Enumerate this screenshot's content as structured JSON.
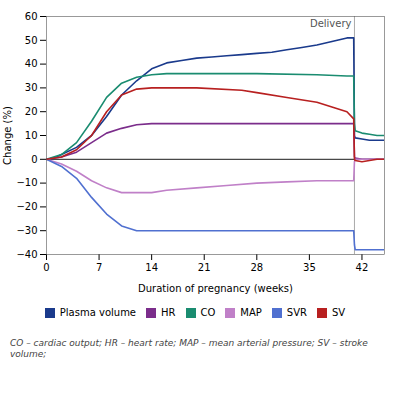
{
  "chart_data": {
    "type": "line",
    "xlabel": "Duration of pregnancy (weeks)",
    "ylabel": "Change (%)",
    "xlim": [
      0,
      45
    ],
    "ylim": [
      -40,
      60
    ],
    "xticks": [
      0,
      7,
      14,
      21,
      28,
      35,
      42
    ],
    "yticks": [
      -40,
      -30,
      -20,
      -10,
      0,
      10,
      20,
      30,
      40,
      50,
      60
    ],
    "grid": false,
    "legend": "bottom",
    "annotations": [
      {
        "text": "Delivery",
        "x": 41.0
      }
    ],
    "caption": "CO – cardiac output; HR – heart rate; MAP – mean arterial pressure; SV – stroke volume;",
    "series": [
      {
        "name": "Plasma volume",
        "color": "#1a3a8c",
        "x": [
          0,
          1,
          2,
          4,
          6,
          8,
          10,
          12,
          14,
          16,
          18,
          20,
          22,
          24,
          26,
          28,
          30,
          32,
          34,
          36,
          38,
          40,
          40.9,
          41.0,
          41.1,
          42,
          43,
          44,
          45
        ],
        "values": [
          0,
          0.5,
          2,
          5,
          10,
          18,
          27,
          33,
          38,
          40.5,
          41.5,
          42.5,
          43,
          43.5,
          44,
          44.5,
          45,
          46,
          47,
          48,
          49.5,
          51,
          51,
          10,
          9,
          8.5,
          8,
          8,
          8
        ]
      },
      {
        "name": "HR",
        "color": "#7b2d8b",
        "x": [
          0,
          2,
          4,
          6,
          8,
          10,
          12,
          14,
          20,
          28,
          36,
          40,
          40.9,
          41.0,
          41.1,
          42,
          43,
          44,
          45
        ],
        "values": [
          0,
          1,
          3,
          7,
          11,
          13,
          14.5,
          15,
          15,
          15,
          15,
          15,
          15,
          1,
          0.5,
          0,
          0,
          0,
          0
        ]
      },
      {
        "name": "CO",
        "color": "#1a8c70",
        "x": [
          0,
          2,
          4,
          6,
          8,
          10,
          12,
          14,
          16,
          20,
          28,
          36,
          40,
          40.9,
          41.0,
          41.1,
          42,
          43,
          44,
          45
        ],
        "values": [
          0,
          2,
          7,
          16,
          26,
          32,
          34.5,
          35.5,
          36,
          36,
          36,
          35.5,
          35,
          35,
          15,
          12,
          11,
          10.5,
          10,
          10
        ]
      },
      {
        "name": "MAP",
        "color": "#c080c8",
        "x": [
          0,
          2,
          4,
          6,
          8,
          10,
          12,
          14,
          16,
          20,
          24,
          28,
          32,
          36,
          38,
          40,
          40.9,
          41.0,
          41.1,
          42,
          43,
          44,
          45
        ],
        "values": [
          0,
          -2,
          -5,
          -9,
          -12,
          -14,
          -14,
          -14,
          -13,
          -12,
          -11,
          -10,
          -9.5,
          -9,
          -9,
          -9,
          -9,
          -1,
          0,
          0,
          0,
          0,
          0
        ]
      },
      {
        "name": "SVR",
        "color": "#5070d0",
        "x": [
          0,
          2,
          4,
          6,
          8,
          10,
          12,
          14,
          16,
          20,
          28,
          36,
          40,
          40.9,
          41.0,
          41.1,
          42,
          43,
          44,
          45
        ],
        "values": [
          0,
          -3,
          -8,
          -16,
          -23,
          -28,
          -30,
          -30,
          -30,
          -30,
          -30,
          -30,
          -30,
          -30,
          -36,
          -38,
          -38,
          -38,
          -38,
          -38
        ]
      },
      {
        "name": "SV",
        "color": "#b82020",
        "x": [
          0,
          2,
          4,
          6,
          8,
          10,
          12,
          14,
          16,
          20,
          26,
          28,
          32,
          36,
          38,
          40,
          40.9,
          41.0,
          41.1,
          42,
          43,
          44,
          45
        ],
        "values": [
          0,
          1,
          4,
          10,
          20,
          27,
          29.5,
          30,
          30,
          30,
          29,
          28,
          26,
          24,
          22,
          20,
          17,
          0,
          -0.5,
          -1,
          -0.5,
          0,
          0
        ]
      }
    ]
  }
}
